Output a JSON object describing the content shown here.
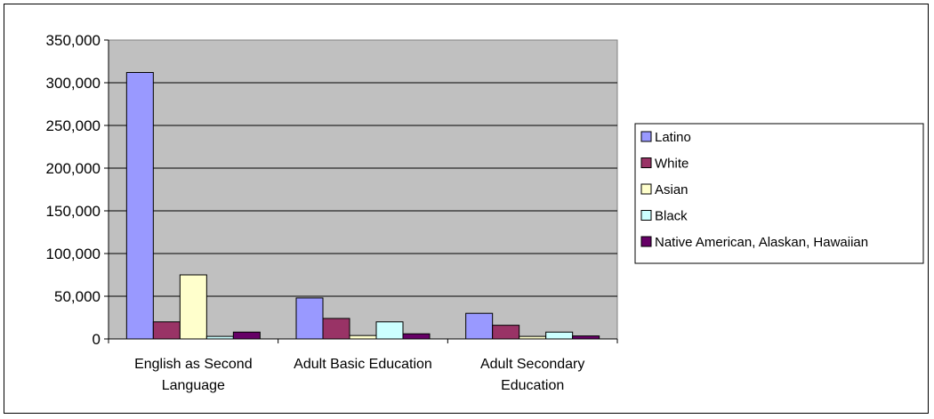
{
  "chart_data": {
    "type": "bar",
    "title": "",
    "xlabel": "",
    "ylabel": "",
    "ylim": [
      0,
      350000
    ],
    "yticks": [
      {
        "value": 0,
        "label": "0"
      },
      {
        "value": 50000,
        "label": "50,000"
      },
      {
        "value": 100000,
        "label": "100,000"
      },
      {
        "value": 150000,
        "label": "150,000"
      },
      {
        "value": 200000,
        "label": "200,000"
      },
      {
        "value": 250000,
        "label": "250,000"
      },
      {
        "value": 300000,
        "label": "300,000"
      },
      {
        "value": 350000,
        "label": "350,000"
      }
    ],
    "categories": [
      [
        "English as Second",
        "Language"
      ],
      [
        "Adult Basic Education"
      ],
      [
        "Adult Secondary",
        "Education"
      ]
    ],
    "series": [
      {
        "name": "Latino",
        "color": "#9999ff",
        "values": [
          312000,
          48000,
          30000
        ]
      },
      {
        "name": "White",
        "color": "#993366",
        "values": [
          20000,
          24000,
          16000
        ]
      },
      {
        "name": "Asian",
        "color": "#ffffcc",
        "values": [
          75000,
          4000,
          3000
        ]
      },
      {
        "name": "Black",
        "color": "#ccffff",
        "values": [
          3000,
          20000,
          8000
        ]
      },
      {
        "name": "Native American, Alaskan, Hawaiian",
        "color": "#660066",
        "values": [
          8000,
          6000,
          3500
        ]
      }
    ],
    "grid": true,
    "plot_background": "#c0c0c0",
    "legend_position": "right"
  }
}
